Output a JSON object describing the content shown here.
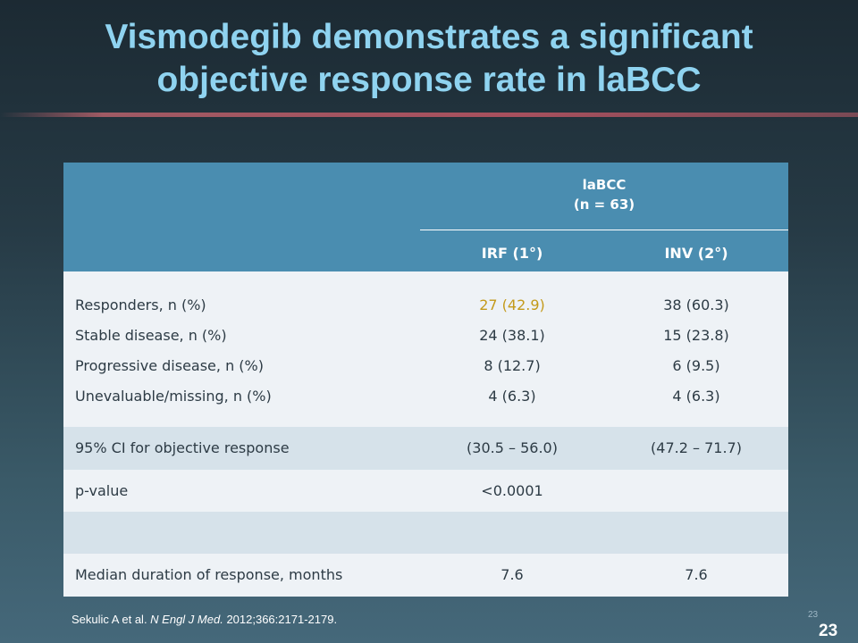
{
  "slide": {
    "title_line1": "Vismodegib demonstrates a significant",
    "title_line2": "objective response rate in laBCC"
  },
  "table": {
    "group_header_line1": "laBCC",
    "group_header_line2": "(n = 63)",
    "col_irf": "IRF (1°)",
    "col_inv": "INV (2°)",
    "rows": [
      {
        "label": "Responders, n (%)",
        "irf": "27 (42.9)",
        "inv": "38 (60.3)"
      },
      {
        "label": "Stable disease, n (%)",
        "irf": "24 (38.1)",
        "inv": "15 (23.8)"
      },
      {
        "label": "Progressive disease, n (%)",
        "irf": "8 (12.7)",
        "inv": "6 (9.5)"
      },
      {
        "label": "Unevaluable/missing, n (%)",
        "irf": "4 (6.3)",
        "inv": "4 (6.3)"
      }
    ],
    "ci_row": {
      "label": "95% CI for objective response",
      "irf": "(30.5 – 56.0)",
      "inv": "(47.2 – 71.7)"
    },
    "p_row": {
      "label": "p-value",
      "irf": "<0.0001",
      "inv": ""
    },
    "duration_row": {
      "label": "Median duration of response, months",
      "irf": "7.6",
      "inv": "7.6"
    }
  },
  "footer": {
    "author": "Sekulic A et al. ",
    "journal": "N Engl J Med.",
    "citation": " 2012;366:2171-2179."
  },
  "page_number_small": "23",
  "page_number_large": "23",
  "colors": {
    "title": "#8fd3f0",
    "header_band": "#4a8db0",
    "highlight": "#c49a1a"
  }
}
